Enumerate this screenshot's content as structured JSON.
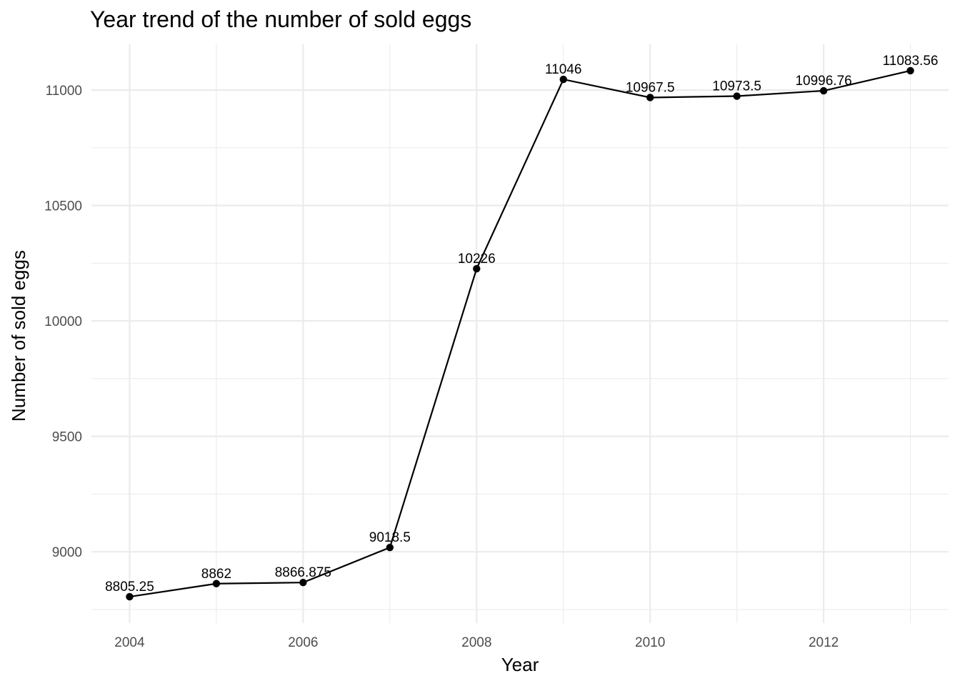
{
  "chart_data": {
    "type": "line",
    "title": "Year trend of the number of sold eggs",
    "xlabel": "Year",
    "ylabel": "Number of sold eggs",
    "x": [
      2004,
      2005,
      2006,
      2007,
      2008,
      2009,
      2010,
      2011,
      2012,
      2013
    ],
    "values": [
      8805.25,
      8862,
      8866.875,
      9018.5,
      10226,
      11046,
      10967.5,
      10973.5,
      10996.76,
      11083.56
    ],
    "data_labels": [
      "8805.25",
      "8862",
      "8866.875",
      "9018.5",
      "10226",
      "11046",
      "10967.5",
      "10973.5",
      "10996.76",
      "11083.56"
    ],
    "x_ticks": [
      2004,
      2006,
      2008,
      2010,
      2012
    ],
    "x_tick_labels": [
      "2004",
      "2006",
      "2008",
      "2010",
      "2012"
    ],
    "y_ticks": [
      9000,
      9500,
      10000,
      10500,
      11000
    ],
    "y_tick_labels": [
      "9000",
      "9500",
      "10000",
      "10500",
      "11000"
    ],
    "xlim": [
      2003.56,
      2013.44
    ],
    "ylim": [
      8691,
      11198
    ],
    "grid": true,
    "legend": "none",
    "colors": {
      "line": "#000000",
      "grid": "#ebebeb",
      "tick_text": "#4d4d4d"
    }
  }
}
